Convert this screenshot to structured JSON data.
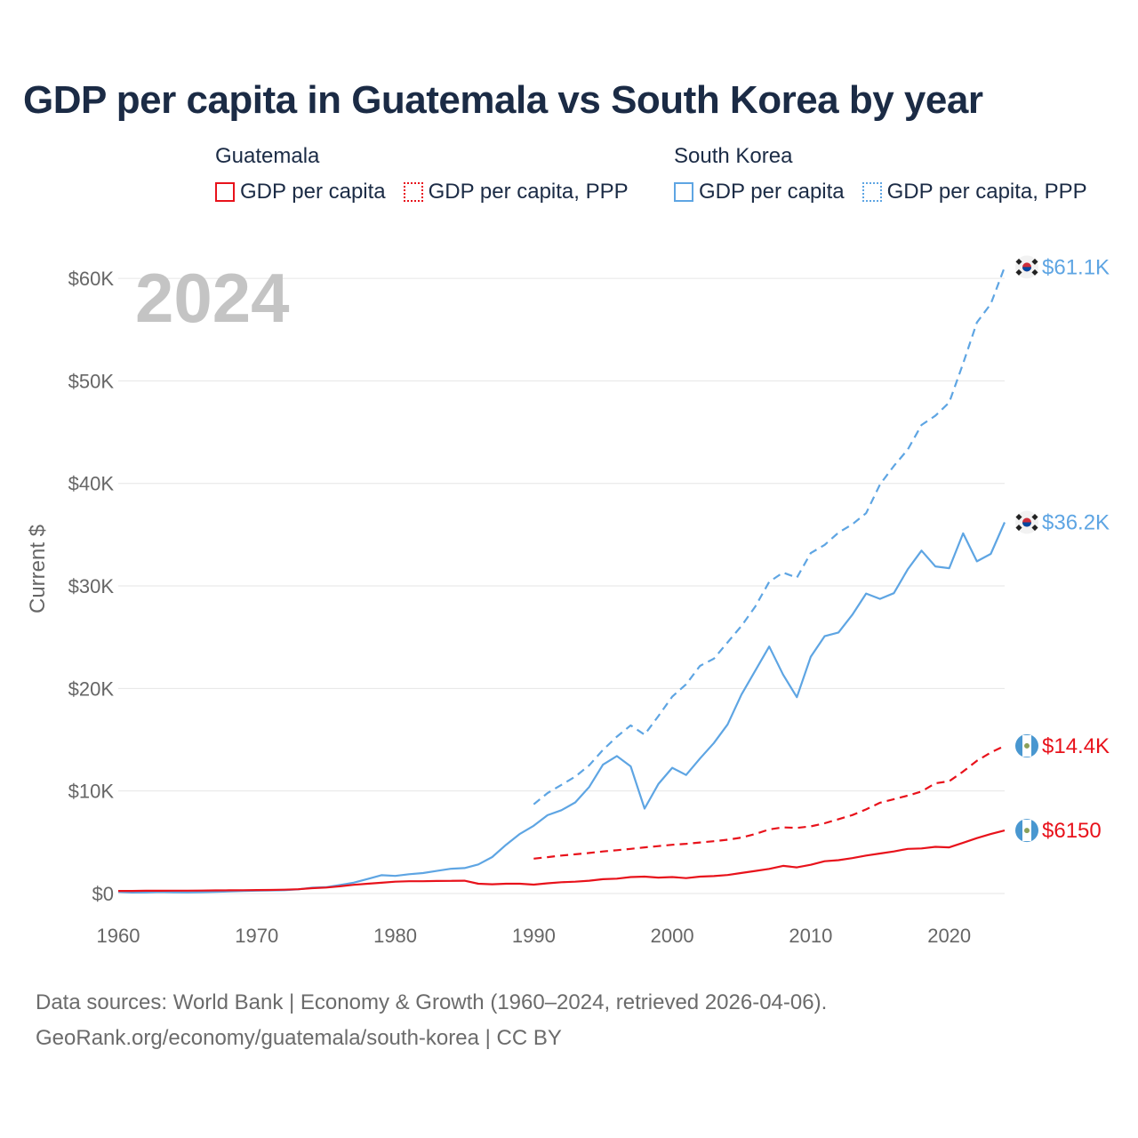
{
  "colors": {
    "guatemala": "#e8121b",
    "south_korea": "#5ea5e3",
    "title": "#1b2b45",
    "grid": "#e6e6e6",
    "tick": "#666666",
    "year": "#c4c4c4"
  },
  "legend": {
    "groups": [
      {
        "name": "Guatemala",
        "items": [
          {
            "label": "GDP per capita",
            "style": "solid"
          },
          {
            "label": "GDP per capita, PPP",
            "style": "dotted"
          }
        ]
      },
      {
        "name": "South Korea",
        "items": [
          {
            "label": "GDP per capita",
            "style": "solid"
          },
          {
            "label": "GDP per capita, PPP",
            "style": "dotted"
          }
        ]
      }
    ]
  },
  "chart_data": {
    "type": "line",
    "title": "GDP per capita in Guatemala vs South Korea by year",
    "xlabel": "",
    "ylabel": "Current $",
    "year_label": "2024",
    "xlim": [
      1960,
      2024
    ],
    "ylim": [
      0,
      62000
    ],
    "x_ticks": [
      1960,
      1970,
      1980,
      1990,
      2000,
      2010,
      2020
    ],
    "y_ticks": [
      {
        "value": 0,
        "label": "$0"
      },
      {
        "value": 10000,
        "label": "$10K"
      },
      {
        "value": 20000,
        "label": "$20K"
      },
      {
        "value": 30000,
        "label": "$30K"
      },
      {
        "value": 40000,
        "label": "$40K"
      },
      {
        "value": 50000,
        "label": "$50K"
      },
      {
        "value": 60000,
        "label": "$60K"
      }
    ],
    "series": [
      {
        "name": "South Korea GDP per capita, PPP",
        "country": "south_korea",
        "dashed": true,
        "end_label": "$61.1K",
        "x": [
          1990,
          1991,
          1992,
          1993,
          1994,
          1995,
          1996,
          1997,
          1998,
          1999,
          2000,
          2001,
          2002,
          2003,
          2004,
          2005,
          2006,
          2007,
          2008,
          2009,
          2010,
          2011,
          2012,
          2013,
          2014,
          2015,
          2016,
          2017,
          2018,
          2019,
          2020,
          2021,
          2022,
          2023,
          2024
        ],
        "values": [
          8700,
          9800,
          10600,
          11400,
          12500,
          14000,
          15300,
          16400,
          15500,
          17300,
          19200,
          20400,
          22200,
          22900,
          24500,
          26100,
          28000,
          30400,
          31300,
          30800,
          33200,
          34000,
          35200,
          36000,
          37100,
          39900,
          41700,
          43300,
          45700,
          46600,
          47900,
          51700,
          55700,
          57500,
          61100
        ]
      },
      {
        "name": "South Korea GDP per capita",
        "country": "south_korea",
        "dashed": false,
        "end_label": "$36.2K",
        "x": [
          1960,
          1961,
          1962,
          1963,
          1964,
          1965,
          1966,
          1967,
          1968,
          1969,
          1970,
          1971,
          1972,
          1973,
          1974,
          1975,
          1976,
          1977,
          1978,
          1979,
          1980,
          1981,
          1982,
          1983,
          1984,
          1985,
          1986,
          1987,
          1988,
          1989,
          1990,
          1991,
          1992,
          1993,
          1994,
          1995,
          1996,
          1997,
          1998,
          1999,
          2000,
          2001,
          2002,
          2003,
          2004,
          2005,
          2006,
          2007,
          2008,
          2009,
          2010,
          2011,
          2012,
          2013,
          2014,
          2015,
          2016,
          2017,
          2018,
          2019,
          2020,
          2021,
          2022,
          2023,
          2024
        ],
        "values": [
          158,
          94,
          106,
          146,
          124,
          108,
          133,
          161,
          198,
          243,
          279,
          301,
          324,
          408,
          563,
          616,
          831,
          1056,
          1415,
          1784,
          1715,
          1883,
          1993,
          2199,
          2413,
          2481,
          2835,
          3555,
          4749,
          5817,
          6610,
          7637,
          8127,
          8885,
          10385,
          12565,
          13403,
          12398,
          8282,
          10672,
          12257,
          11562,
          13166,
          14673,
          16496,
          19403,
          21744,
          24086,
          21350,
          19144,
          23079,
          25098,
          25459,
          27180,
          29253,
          28737,
          29289,
          31617,
          33447,
          31903,
          31727,
          35126,
          32395,
          33121,
          36200
        ]
      },
      {
        "name": "Guatemala GDP per capita, PPP",
        "country": "guatemala",
        "dashed": true,
        "end_label": "$14.4K",
        "x": [
          1990,
          1991,
          1992,
          1993,
          1994,
          1995,
          1996,
          1997,
          1998,
          1999,
          2000,
          2001,
          2002,
          2003,
          2004,
          2005,
          2006,
          2007,
          2008,
          2009,
          2010,
          2011,
          2012,
          2013,
          2014,
          2015,
          2016,
          2017,
          2018,
          2019,
          2020,
          2021,
          2022,
          2023,
          2024
        ],
        "values": [
          3400,
          3550,
          3700,
          3820,
          3950,
          4100,
          4220,
          4350,
          4500,
          4620,
          4750,
          4850,
          4980,
          5100,
          5250,
          5450,
          5800,
          6250,
          6450,
          6400,
          6550,
          6850,
          7250,
          7650,
          8200,
          8850,
          9200,
          9550,
          9950,
          10750,
          10950,
          11900,
          12950,
          13750,
          14400
        ]
      },
      {
        "name": "Guatemala GDP per capita",
        "country": "guatemala",
        "dashed": false,
        "end_label": "$6150",
        "x": [
          1960,
          1961,
          1962,
          1963,
          1964,
          1965,
          1966,
          1967,
          1968,
          1969,
          1970,
          1971,
          1972,
          1973,
          1974,
          1975,
          1976,
          1977,
          1978,
          1979,
          1980,
          1981,
          1982,
          1983,
          1984,
          1985,
          1986,
          1987,
          1988,
          1989,
          1990,
          1991,
          1992,
          1993,
          1994,
          1995,
          1996,
          1997,
          1998,
          1999,
          2000,
          2001,
          2002,
          2003,
          2004,
          2005,
          2006,
          2007,
          2008,
          2009,
          2010,
          2011,
          2012,
          2013,
          2014,
          2015,
          2016,
          2017,
          2018,
          2019,
          2020,
          2021,
          2022,
          2023,
          2024
        ],
        "values": [
          250,
          255,
          265,
          270,
          275,
          280,
          290,
          300,
          310,
          325,
          340,
          350,
          370,
          420,
          520,
          580,
          700,
          850,
          950,
          1050,
          1150,
          1200,
          1200,
          1220,
          1230,
          1250,
          950,
          900,
          950,
          950,
          870,
          1000,
          1100,
          1150,
          1250,
          1400,
          1450,
          1600,
          1650,
          1550,
          1600,
          1500,
          1650,
          1700,
          1800,
          2000,
          2200,
          2400,
          2700,
          2550,
          2800,
          3150,
          3250,
          3450,
          3700,
          3900,
          4100,
          4350,
          4400,
          4550,
          4500,
          4950,
          5400,
          5800,
          6150
        ]
      }
    ]
  },
  "footer": {
    "line1": "Data sources: World Bank | Economy & Growth (1960–2024, retrieved 2026-04-06).",
    "line2": "GeoRank.org/economy/guatemala/south-korea | CC BY"
  }
}
